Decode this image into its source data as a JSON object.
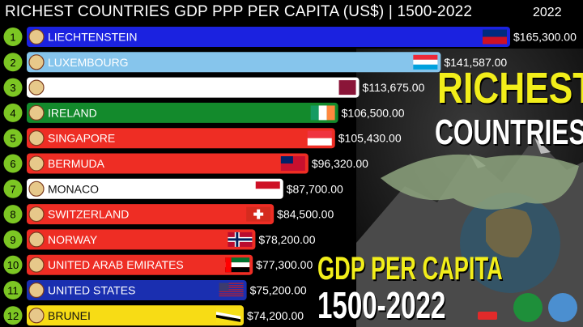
{
  "header": {
    "title": "RICHEST COUNTRIES GDP PPP PER CAPITA (US$) | 1500-2022",
    "year": "2022"
  },
  "promo": {
    "line1": "RICHEST",
    "line2": "COUNTRIES",
    "line3": "GDP PER CAPITA",
    "line4": "1500-2022"
  },
  "chart_data": {
    "type": "bar",
    "orientation": "horizontal",
    "title": "RICHEST COUNTRIES GDP PPP PER CAPITA (US$) | 1500-2022",
    "period": "2022",
    "categories": [
      "LIECHTENSTEIN",
      "LUXEMBOURG",
      "QATAR",
      "IRELAND",
      "SINGAPORE",
      "BERMUDA",
      "MONACO",
      "SWITZERLAND",
      "NORWAY",
      "UNITED ARAB EMIRATES",
      "UNITED STATES",
      "BRUNEI"
    ],
    "ranks": [
      "1",
      "2",
      "3",
      "4",
      "5",
      "6",
      "7",
      "8",
      "9",
      "10",
      "11",
      "12"
    ],
    "values": [
      165300,
      141587,
      113675,
      106500,
      105430,
      96320,
      87700,
      84500,
      78200,
      77300,
      75200,
      74200
    ],
    "value_labels": [
      "$165,300.00",
      "$141,587.00",
      "$113,675.00",
      "$106,500.00",
      "$105,430.00",
      "$96,320.00",
      "$87,700.00",
      "$84,500.00",
      "$78,200.00",
      "$77,300.00",
      "$75,200.00",
      "$74,200.00"
    ],
    "bar_colors": [
      "#1b22e0",
      "#86c5ec",
      "#ffffff",
      "#138a2c",
      "#ee2d24",
      "#ee2d24",
      "#ffffff",
      "#ee2d24",
      "#ee2d24",
      "#ee2d24",
      "#1a2fb0",
      "#f7dc15"
    ],
    "label_colors": [
      "#ffffff",
      "#ffffff",
      "#ffffff",
      "#ffffff",
      "#ffffff",
      "#ffffff",
      "#111111",
      "#ffffff",
      "#ffffff",
      "#ffffff",
      "#ffffff",
      "#111111"
    ],
    "flags": [
      "liechtenstein-flag",
      "luxembourg-flag",
      "qatar-flag",
      "ireland-flag",
      "singapore-flag",
      "bermuda-flag",
      "monaco-flag",
      "switzerland-flag",
      "norway-flag",
      "uae-flag",
      "usa-flag",
      "brunei-flag"
    ],
    "rank_badge_color": "#7cc623"
  }
}
